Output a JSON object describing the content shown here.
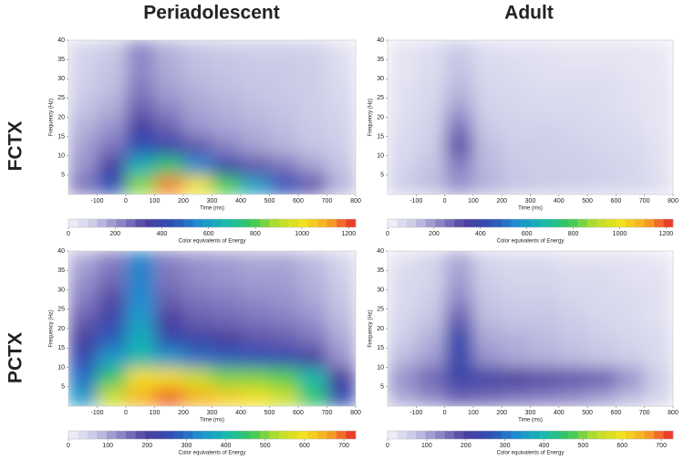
{
  "figure": {
    "columns": [
      "Periadolescent",
      "Adult"
    ],
    "rows": [
      "FCTX",
      "PCTX"
    ]
  },
  "chart_data": [
    {
      "type": "heatmap",
      "xlabel": "Time (ms)",
      "ylabel": "Frequency (Hz)",
      "colorbar_label": "Color equivalents of Energy",
      "xlim": [
        -200,
        800
      ],
      "xticks": [
        -100,
        0,
        100,
        200,
        300,
        400,
        500,
        600,
        700,
        800
      ],
      "ylim": [
        0,
        40
      ],
      "yticks": [
        5,
        10,
        15,
        20,
        25,
        30,
        35,
        40
      ],
      "clim": [
        0,
        1230
      ],
      "cticks": [
        0,
        200,
        400,
        600,
        800,
        1000,
        1200
      ],
      "colors": [
        "#f4f4fb",
        "#c9c9e6",
        "#8c86c6",
        "#4a3f9e",
        "#2f4fb5",
        "#1d8fd0",
        "#17b8b0",
        "#37c95a",
        "#b8de2a",
        "#f2e21f",
        "#f7a524",
        "#e8262a"
      ],
      "x": [
        -150,
        -50,
        50,
        150,
        250,
        350,
        450,
        550,
        650,
        750
      ],
      "y": [
        2.5,
        7.5,
        12.5,
        17.5,
        22.5,
        27.5,
        32.5,
        37.5
      ],
      "z": [
        [
          250,
          450,
          850,
          1150,
          1000,
          800,
          600,
          450,
          300,
          150
        ],
        [
          200,
          350,
          650,
          750,
          550,
          400,
          300,
          250,
          180,
          120
        ],
        [
          180,
          250,
          450,
          400,
          300,
          230,
          180,
          150,
          120,
          100
        ],
        [
          150,
          200,
          350,
          280,
          200,
          170,
          150,
          130,
          110,
          90
        ],
        [
          120,
          160,
          280,
          220,
          170,
          150,
          130,
          120,
          100,
          80
        ],
        [
          100,
          130,
          240,
          180,
          150,
          130,
          120,
          110,
          100,
          70
        ],
        [
          90,
          120,
          220,
          160,
          130,
          120,
          110,
          110,
          100,
          60
        ],
        [
          80,
          110,
          220,
          150,
          120,
          110,
          100,
          100,
          90,
          50
        ]
      ]
    },
    {
      "type": "heatmap",
      "xlabel": "Time (ms)",
      "ylabel": "Frequency (Hz)",
      "colorbar_label": "Color equivalents of Energy",
      "xlim": [
        -200,
        800
      ],
      "xticks": [
        -100,
        0,
        100,
        200,
        300,
        400,
        500,
        600,
        700,
        800
      ],
      "ylim": [
        0,
        40
      ],
      "yticks": [
        5,
        10,
        15,
        20,
        25,
        30,
        35,
        40
      ],
      "clim": [
        0,
        1230
      ],
      "cticks": [
        0,
        200,
        400,
        600,
        800,
        1000,
        1200
      ],
      "colors": [
        "#f4f4fb",
        "#c9c9e6",
        "#8c86c6",
        "#4a3f9e",
        "#2f4fb5",
        "#1d8fd0",
        "#17b8b0",
        "#37c95a",
        "#b8de2a",
        "#f2e21f",
        "#f7a524",
        "#e8262a"
      ],
      "x": [
        -150,
        -50,
        50,
        150,
        250,
        350,
        450,
        550,
        650,
        750
      ],
      "y": [
        2.5,
        7.5,
        12.5,
        17.5,
        22.5,
        27.5,
        32.5,
        37.5
      ],
      "z": [
        [
          100,
          130,
          200,
          150,
          120,
          110,
          100,
          90,
          80,
          60
        ],
        [
          80,
          120,
          230,
          140,
          110,
          100,
          100,
          90,
          80,
          50
        ],
        [
          70,
          100,
          300,
          130,
          100,
          100,
          90,
          80,
          70,
          50
        ],
        [
          60,
          90,
          250,
          110,
          90,
          90,
          80,
          70,
          60,
          40
        ],
        [
          50,
          80,
          180,
          90,
          80,
          70,
          70,
          60,
          50,
          40
        ],
        [
          50,
          70,
          140,
          80,
          70,
          60,
          60,
          60,
          50,
          40
        ],
        [
          40,
          60,
          120,
          70,
          60,
          50,
          50,
          50,
          40,
          30
        ],
        [
          40,
          60,
          110,
          60,
          50,
          50,
          40,
          40,
          40,
          30
        ]
      ]
    },
    {
      "type": "heatmap",
      "xlabel": "Time (ms)",
      "ylabel": "Frequency (Hz)",
      "colorbar_label": "Color equivalents of Energy",
      "xlim": [
        -200,
        800
      ],
      "xticks": [
        -100,
        0,
        100,
        200,
        300,
        400,
        500,
        600,
        700,
        800
      ],
      "ylim": [
        0,
        40
      ],
      "yticks": [
        5,
        10,
        15,
        20,
        25,
        30,
        35,
        40
      ],
      "clim": [
        0,
        730
      ],
      "cticks": [
        0,
        100,
        200,
        300,
        400,
        500,
        600,
        700
      ],
      "colors": [
        "#f4f4fb",
        "#c9c9e6",
        "#8c86c6",
        "#4a3f9e",
        "#2f4fb5",
        "#1d8fd0",
        "#17b8b0",
        "#37c95a",
        "#b8de2a",
        "#f2e21f",
        "#f7a524",
        "#e8262a"
      ],
      "x": [
        -150,
        -50,
        50,
        150,
        250,
        350,
        450,
        550,
        650,
        750
      ],
      "y": [
        2.5,
        7.5,
        12.5,
        17.5,
        22.5,
        27.5,
        32.5,
        37.5
      ],
      "z": [
        [
          350,
          550,
          650,
          700,
          650,
          620,
          600,
          550,
          450,
          250
        ],
        [
          300,
          450,
          600,
          600,
          550,
          500,
          500,
          480,
          400,
          200
        ],
        [
          250,
          350,
          400,
          350,
          300,
          280,
          270,
          250,
          200,
          120
        ],
        [
          200,
          280,
          380,
          250,
          220,
          200,
          180,
          170,
          150,
          100
        ],
        [
          170,
          230,
          350,
          200,
          170,
          160,
          150,
          140,
          120,
          80
        ],
        [
          140,
          190,
          330,
          170,
          150,
          140,
          130,
          120,
          100,
          70
        ],
        [
          120,
          160,
          320,
          150,
          130,
          120,
          110,
          110,
          90,
          60
        ],
        [
          100,
          140,
          320,
          140,
          120,
          110,
          100,
          100,
          80,
          50
        ]
      ]
    },
    {
      "type": "heatmap",
      "xlabel": "Time (ms)",
      "ylabel": "Frequency (Hz)",
      "colorbar_label": "Color equivalents of Energy",
      "xlim": [
        -200,
        800
      ],
      "xticks": [
        -100,
        0,
        100,
        200,
        300,
        400,
        500,
        600,
        700,
        800
      ],
      "ylim": [
        0,
        40
      ],
      "yticks": [
        5,
        10,
        15,
        20,
        25,
        30,
        35,
        40
      ],
      "clim": [
        0,
        730
      ],
      "cticks": [
        0,
        100,
        200,
        300,
        400,
        500,
        600,
        700
      ],
      "colors": [
        "#f4f4fb",
        "#c9c9e6",
        "#8c86c6",
        "#4a3f9e",
        "#2f4fb5",
        "#1d8fd0",
        "#17b8b0",
        "#37c95a",
        "#b8de2a",
        "#f2e21f",
        "#f7a524",
        "#e8262a"
      ],
      "x": [
        -150,
        -50,
        50,
        150,
        250,
        350,
        450,
        550,
        650,
        750
      ],
      "y": [
        2.5,
        7.5,
        12.5,
        17.5,
        22.5,
        27.5,
        32.5,
        37.5
      ],
      "z": [
        [
          100,
          130,
          170,
          160,
          150,
          140,
          130,
          110,
          80,
          50
        ],
        [
          120,
          160,
          230,
          220,
          200,
          190,
          180,
          170,
          120,
          60
        ],
        [
          80,
          110,
          230,
          120,
          100,
          90,
          80,
          70,
          60,
          40
        ],
        [
          60,
          90,
          240,
          100,
          90,
          80,
          70,
          60,
          50,
          40
        ],
        [
          50,
          70,
          170,
          80,
          70,
          70,
          60,
          50,
          40,
          30
        ],
        [
          40,
          60,
          130,
          70,
          60,
          60,
          50,
          40,
          40,
          30
        ],
        [
          40,
          50,
          110,
          60,
          50,
          50,
          40,
          40,
          30,
          30
        ],
        [
          30,
          50,
          100,
          50,
          40,
          40,
          30,
          30,
          30,
          20
        ]
      ]
    }
  ]
}
